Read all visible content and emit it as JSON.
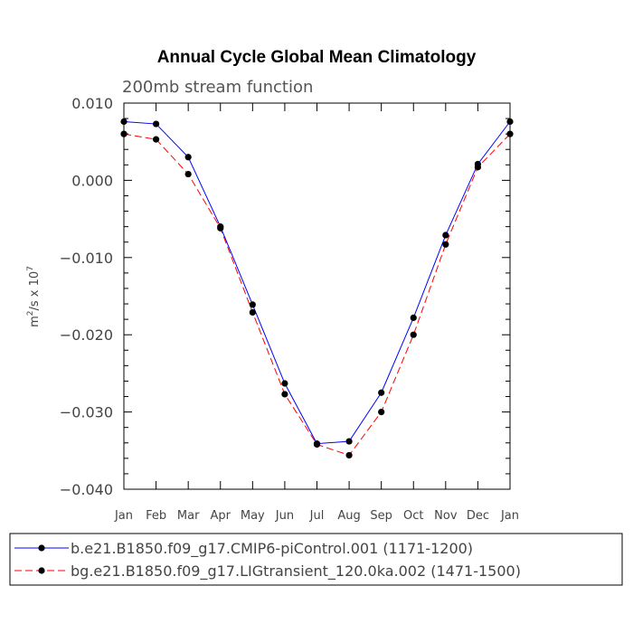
{
  "chart_data": {
    "type": "line",
    "title": "Annual Cycle Global Mean Climatology",
    "subtitle": "200mb stream function",
    "ylabel": "m²/s x 10⁷",
    "ylabel_main": "m",
    "ylabel_exp1": "2",
    "ylabel_mid": "/s x 10",
    "ylabel_exp2": "7",
    "ylim": [
      -0.04,
      0.01
    ],
    "yticks": [
      0.01,
      0.0,
      -0.01,
      -0.02,
      -0.03,
      -0.04
    ],
    "ytick_labels": [
      "0.010",
      "0.000",
      "−0.010",
      "−0.020",
      "−0.030",
      "−0.040"
    ],
    "categories": [
      "Jan",
      "Feb",
      "Mar",
      "Apr",
      "May",
      "Jun",
      "Jul",
      "Aug",
      "Sep",
      "Oct",
      "Nov",
      "Dec",
      "Jan"
    ],
    "series": [
      {
        "name": "b.e21.B1850.f09_g17.CMIP6-piControl.001 (1171-1200)",
        "color": "#0000ff",
        "dash": "solid",
        "values": [
          0.0076,
          0.0073,
          0.003,
          -0.006,
          -0.0161,
          -0.0263,
          -0.0341,
          -0.0338,
          -0.0275,
          -0.0178,
          -0.0071,
          0.0021,
          0.0076
        ]
      },
      {
        "name": "bg.e21.B1850.f09_g17.LIGtransient_120.0ka.002 (1471-1500)",
        "color": "#ff0000",
        "dash": "dashed",
        "values": [
          0.006,
          0.0053,
          0.0008,
          -0.0062,
          -0.0171,
          -0.0277,
          -0.0342,
          -0.0356,
          -0.03,
          -0.02,
          -0.0083,
          0.0017,
          0.006
        ]
      }
    ],
    "legend_position": "bottom"
  }
}
